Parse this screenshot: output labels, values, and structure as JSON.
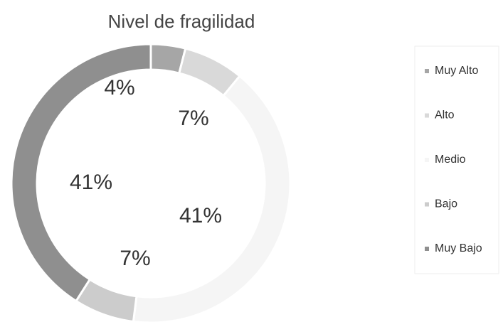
{
  "chart_data": {
    "type": "pie",
    "title": "Nivel de fragilidad",
    "categories": [
      "Muy Alto",
      "Alto",
      "Medio",
      "Bajo",
      "Muy Bajo"
    ],
    "values": [
      4,
      7,
      41,
      7,
      41
    ],
    "value_labels": [
      "4%",
      "7%",
      "41%",
      "7%",
      "41%"
    ],
    "colors": [
      "#a6a6a6",
      "#d9d9d9",
      "#f5f5f5",
      "#cccccc",
      "#8f8f8f"
    ],
    "legend": "right"
  }
}
